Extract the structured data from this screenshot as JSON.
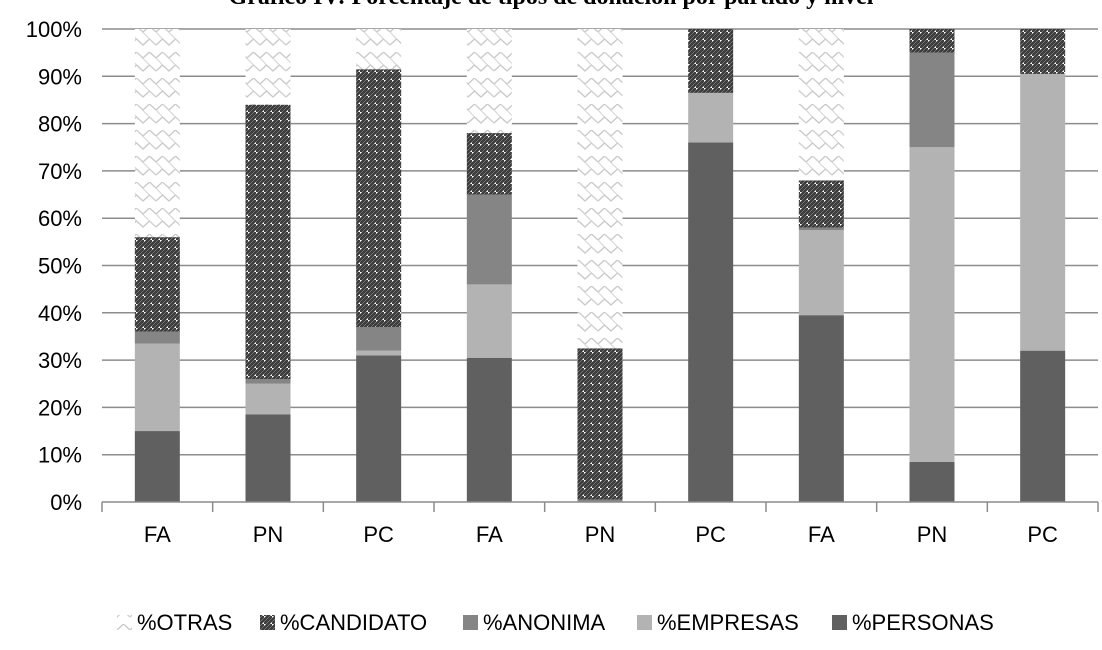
{
  "chart_data": {
    "type": "bar",
    "stacked": true,
    "title": "Gráfico IV: Porcentaje de tipos de donación por partido y nivel",
    "xlabel": "",
    "ylabel": "",
    "ylim": [
      0,
      100
    ],
    "y_ticks": [
      "0%",
      "10%",
      "20%",
      "30%",
      "40%",
      "50%",
      "60%",
      "70%",
      "80%",
      "90%",
      "100%"
    ],
    "categories": [
      "FA",
      "PN",
      "PC",
      "FA",
      "PN",
      "PC",
      "FA",
      "PN",
      "PC"
    ],
    "grid": true,
    "legend_position": "bottom",
    "series": [
      {
        "name": "%PERSONAS",
        "pattern": "solid-dark",
        "color": "#606060",
        "values": [
          15,
          18.5,
          31,
          30.5,
          0,
          76,
          39.5,
          8.5,
          32
        ]
      },
      {
        "name": "%EMPRESAS",
        "pattern": "solid-light",
        "color": "#b3b3b3",
        "values": [
          18.5,
          6.5,
          1,
          15.5,
          0,
          10.5,
          18,
          66.5,
          58.5
        ]
      },
      {
        "name": "%ANONIMA",
        "pattern": "solid-mid",
        "color": "#858585",
        "values": [
          2.5,
          1,
          5,
          19,
          0.5,
          0,
          0.5,
          20,
          0
        ]
      },
      {
        "name": "%CANDIDATO",
        "pattern": "diagonal-stripes",
        "color": "#3c3c3c",
        "values": [
          20,
          58,
          54.5,
          13,
          32,
          13.5,
          10,
          5,
          9.5
        ]
      },
      {
        "name": "%OTRAS",
        "pattern": "zigzag",
        "color": "#d0d0d0",
        "values": [
          44,
          16,
          8.5,
          22,
          67.5,
          0,
          32,
          0,
          0
        ]
      }
    ]
  }
}
